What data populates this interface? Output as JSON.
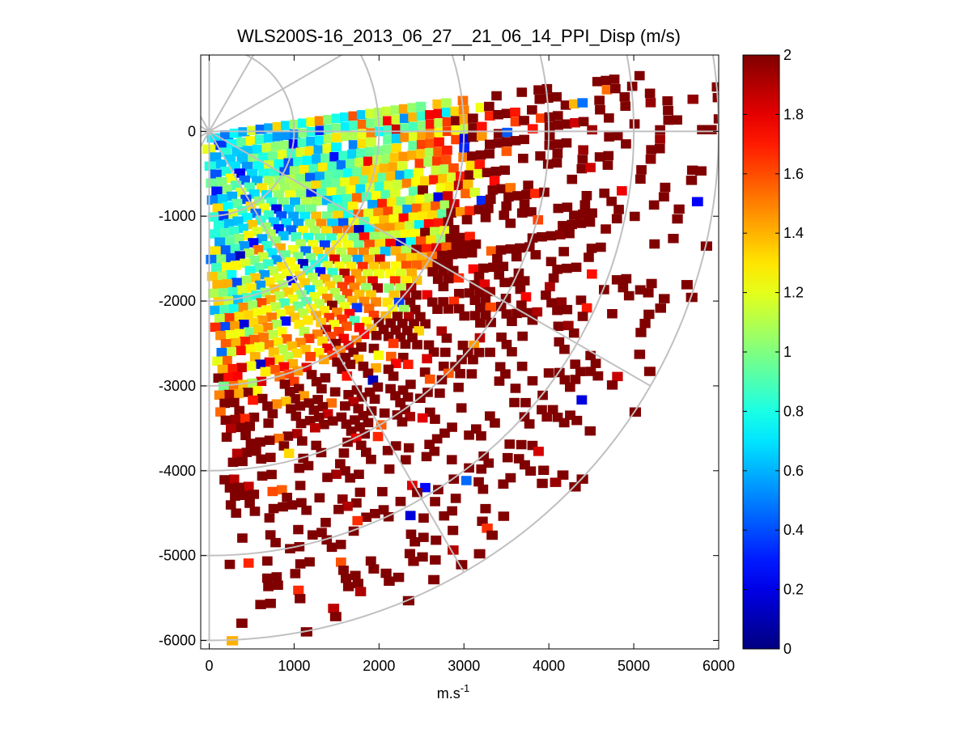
{
  "chart_data": {
    "type": "heatmap",
    "subtype": "ppi-polar-sector",
    "title": "WLS200S-16_2013_06_27__21_06_14_PPI_Disp (m/s)",
    "xlabel": "m.s",
    "xlabel_superscript": "-1",
    "ylabel": "",
    "xlim": [
      -100,
      6000
    ],
    "ylim": [
      -6100,
      900
    ],
    "x_ticks": [
      0,
      1000,
      2000,
      3000,
      4000,
      5000,
      6000
    ],
    "x_tick_labels": [
      "0",
      "1000",
      "2000",
      "3000",
      "4000",
      "5000",
      "6000"
    ],
    "y_ticks": [
      0,
      -1000,
      -2000,
      -3000,
      -4000,
      -5000,
      -6000
    ],
    "y_tick_labels": [
      "0",
      "-1000",
      "-2000",
      "-3000",
      "-4000",
      "-5000",
      "-6000"
    ],
    "polar_grid": {
      "origin": [
        0,
        0
      ],
      "ring_radii": [
        1000,
        2000,
        3000,
        4000,
        5000,
        6000
      ],
      "spoke_angles_deg": [
        0,
        30,
        60,
        90,
        120,
        150,
        180,
        210,
        240,
        270,
        300,
        330
      ],
      "color": "#c0c0c0"
    },
    "scan_sector": {
      "azimuth_from_deg": 8,
      "azimuth_to_deg": -87
    },
    "colorbar": {
      "colormap": "jet",
      "range": [
        0,
        2
      ],
      "ticks": [
        0,
        0.2,
        0.4,
        0.6,
        0.8,
        1,
        1.2,
        1.4,
        1.6,
        1.8,
        2
      ],
      "tick_labels": [
        "0",
        "0.2",
        "0.4",
        "0.6",
        "0.8",
        "1",
        "1.2",
        "1.4",
        "1.6",
        "1.8",
        "2"
      ]
    },
    "value_profile": {
      "description_range_m": [
        0,
        6000
      ],
      "range_m": [
        0,
        1000,
        2000,
        2800,
        3500,
        4500,
        6000
      ],
      "typical_value_ms": [
        0.75,
        0.85,
        1.1,
        1.5,
        1.85,
        2.0,
        2.0
      ],
      "fill_probability": [
        1.0,
        1.0,
        0.97,
        0.85,
        0.55,
        0.28,
        0.12
      ]
    }
  }
}
